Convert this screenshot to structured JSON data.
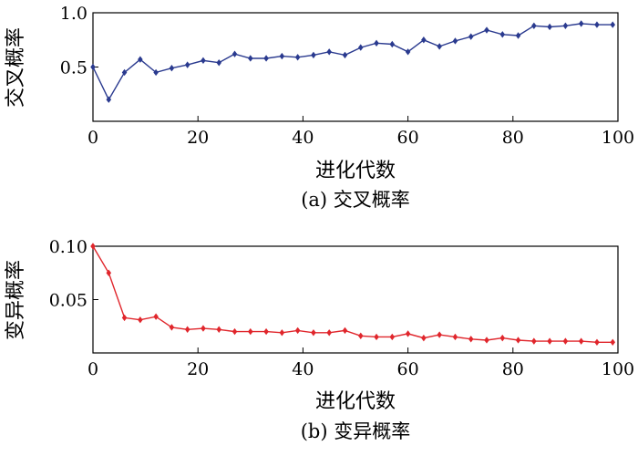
{
  "chart_data": [
    {
      "type": "line",
      "caption": "(a) 交叉概率",
      "xlabel": "进化代数",
      "ylabel": "交叉概率",
      "xlim": [
        0,
        100
      ],
      "ylim": [
        0.0,
        1.0
      ],
      "xticks": [
        0,
        20,
        40,
        60,
        80,
        100
      ],
      "yticks": [
        0.5,
        1.0
      ],
      "ytick_labels": [
        "0.5",
        "1.0"
      ],
      "grid": false,
      "color": "#2a3a8f",
      "marker": "diamond",
      "series": [
        {
          "x": [
            0,
            3,
            6,
            9,
            12,
            15,
            18,
            21,
            24,
            27,
            30,
            33,
            36,
            39,
            42,
            45,
            48,
            51,
            54,
            57,
            60,
            63,
            66,
            69,
            72,
            75,
            78,
            81,
            84,
            87,
            90,
            93,
            96,
            99
          ],
          "values": [
            0.5,
            0.2,
            0.45,
            0.57,
            0.45,
            0.49,
            0.52,
            0.56,
            0.54,
            0.62,
            0.58,
            0.58,
            0.6,
            0.59,
            0.61,
            0.64,
            0.61,
            0.68,
            0.72,
            0.71,
            0.64,
            0.75,
            0.69,
            0.74,
            0.78,
            0.84,
            0.8,
            0.79,
            0.88,
            0.87,
            0.88,
            0.9,
            0.89,
            0.89
          ]
        }
      ]
    },
    {
      "type": "line",
      "caption": "(b) 变异概率",
      "xlabel": "进化代数",
      "ylabel": "变异概率",
      "xlim": [
        0,
        100
      ],
      "ylim": [
        0.0,
        0.1
      ],
      "xticks": [
        0,
        20,
        40,
        60,
        80,
        100
      ],
      "yticks": [
        0.05,
        0.1
      ],
      "ytick_labels": [
        "0.05",
        "0.10"
      ],
      "grid": false,
      "color": "#e0262c",
      "marker": "diamond",
      "series": [
        {
          "x": [
            0,
            3,
            6,
            9,
            12,
            15,
            18,
            21,
            24,
            27,
            30,
            33,
            36,
            39,
            42,
            45,
            48,
            51,
            54,
            57,
            60,
            63,
            66,
            69,
            72,
            75,
            78,
            81,
            84,
            87,
            90,
            93,
            96,
            99
          ],
          "values": [
            0.1,
            0.075,
            0.033,
            0.031,
            0.034,
            0.024,
            0.022,
            0.023,
            0.022,
            0.02,
            0.02,
            0.02,
            0.019,
            0.021,
            0.019,
            0.019,
            0.021,
            0.016,
            0.015,
            0.015,
            0.018,
            0.014,
            0.017,
            0.015,
            0.013,
            0.012,
            0.014,
            0.012,
            0.011,
            0.011,
            0.011,
            0.011,
            0.01,
            0.01
          ]
        }
      ]
    }
  ]
}
